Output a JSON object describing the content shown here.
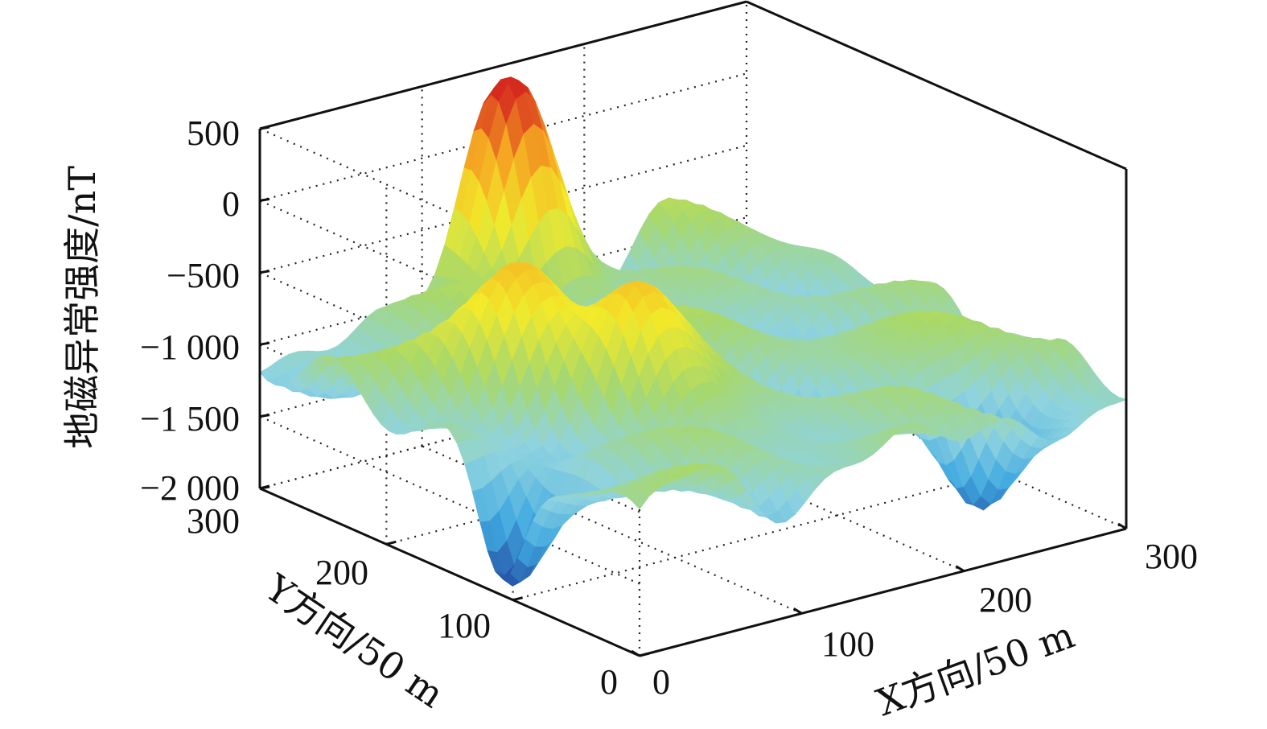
{
  "chart_data": {
    "type": "surface3d",
    "title": "",
    "zlabel": "地磁异常强度/nT",
    "xlabel": "X方向/50 m",
    "ylabel": "Y方向/50 m",
    "z_ticks": [
      "500",
      "0",
      "−500",
      "−1 000",
      "−1 500",
      "−2 000"
    ],
    "z_tick_values": [
      500,
      0,
      -500,
      -1000,
      -1500,
      -2000
    ],
    "x_ticks": [
      "0",
      "100",
      "200",
      "300"
    ],
    "x_tick_values": [
      0,
      100,
      200,
      300
    ],
    "y_ticks": [
      "0",
      "100",
      "200",
      "300"
    ],
    "y_tick_values": [
      0,
      100,
      200,
      300
    ],
    "xlim": [
      0,
      300
    ],
    "ylim": [
      0,
      300
    ],
    "zlim": [
      -2000,
      500
    ],
    "grid": true,
    "colormap": [
      "#1f3c96",
      "#3fa8e0",
      "#8fd3e0",
      "#a8d86a",
      "#f2ea2a",
      "#f5a623",
      "#d62a1e"
    ],
    "features": [
      {
        "x": 150,
        "y": 290,
        "z": 430,
        "kind": "peak"
      },
      {
        "x": 75,
        "y": 185,
        "z": -200,
        "kind": "peak"
      },
      {
        "x": 100,
        "y": 130,
        "z": -350,
        "kind": "peak"
      },
      {
        "x": 5,
        "y": 110,
        "z": -1900,
        "kind": "trough"
      },
      {
        "x": 240,
        "y": 40,
        "z": -1700,
        "kind": "trough"
      }
    ]
  }
}
